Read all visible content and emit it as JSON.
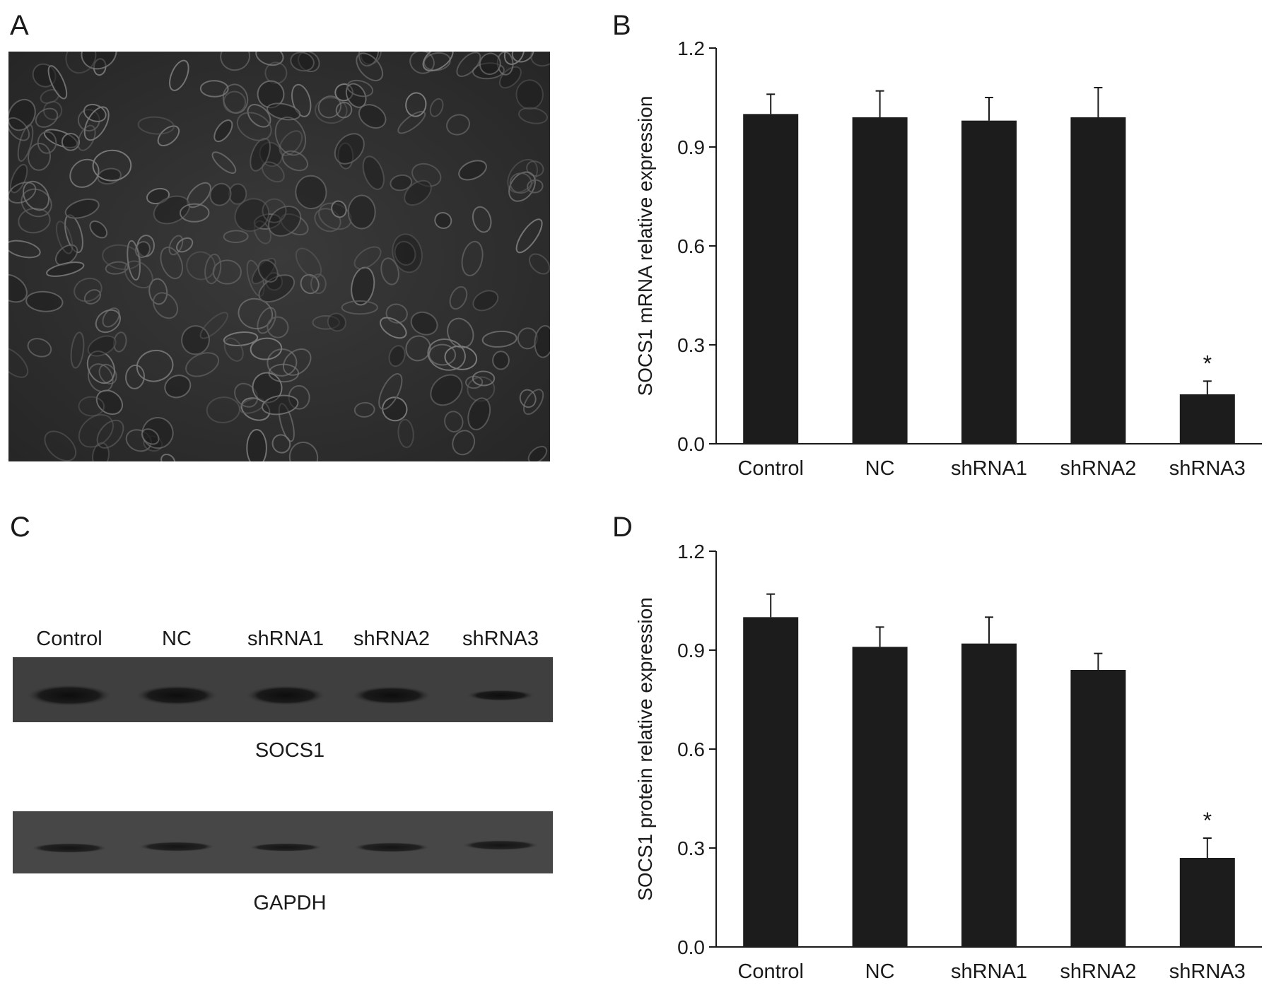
{
  "panels": {
    "a": "A",
    "b": "B",
    "c": "C",
    "d": "D"
  },
  "western_blot": {
    "lanes": [
      "Control",
      "NC",
      "shRNA1",
      "shRNA2",
      "shRNA3"
    ],
    "socs1_label": "SOCS1",
    "gapdh_label": "GAPDH"
  },
  "chart_data": [
    {
      "type": "bar",
      "categories": [
        "Control",
        "NC",
        "shRNA1",
        "shRNA2",
        "shRNA3"
      ],
      "values": [
        1.0,
        0.99,
        0.98,
        0.99,
        0.15
      ],
      "errors": [
        0.06,
        0.08,
        0.07,
        0.09,
        0.04
      ],
      "annotations": [
        "",
        "",
        "",
        "",
        "*"
      ],
      "title": "",
      "xlabel": "",
      "ylabel": "SOCS1 mRNA relative expression",
      "ylim": [
        0,
        1.2
      ],
      "yticks": [
        "0.0",
        "0.3",
        "0.6",
        "0.9",
        "1.2"
      ],
      "bar_color": "#1c1c1c",
      "grid": false
    },
    {
      "type": "bar",
      "categories": [
        "Control",
        "NC",
        "shRNA1",
        "shRNA2",
        "shRNA3"
      ],
      "values": [
        1.0,
        0.91,
        0.92,
        0.84,
        0.27
      ],
      "errors": [
        0.07,
        0.06,
        0.08,
        0.05,
        0.06
      ],
      "annotations": [
        "",
        "",
        "",
        "",
        "*"
      ],
      "title": "",
      "xlabel": "",
      "ylabel": "SOCS1 protein relative expression",
      "ylim": [
        0,
        1.2
      ],
      "yticks": [
        "0.0",
        "0.3",
        "0.6",
        "0.9",
        "1.2"
      ],
      "bar_color": "#1c1c1c",
      "grid": false
    }
  ]
}
